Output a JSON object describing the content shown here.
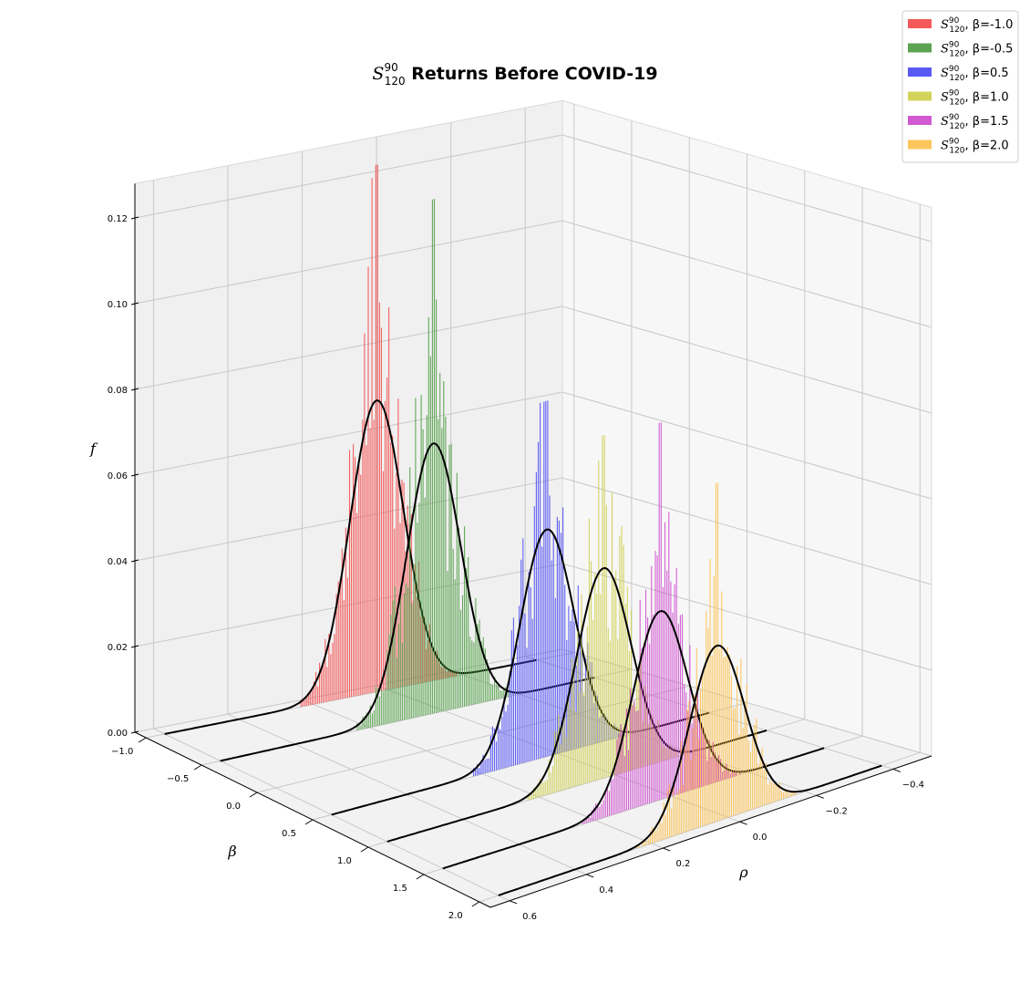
{
  "chart_data": {
    "type": "bar3d",
    "title": {
      "symbol": "S",
      "superscript": "90",
      "subscript": "120",
      "text": " Returns Before COVID-19"
    },
    "xlabel": "β",
    "ylabel": "ρ",
    "zlabel": "f",
    "xlim": [
      -1.1,
      2.1
    ],
    "ylim": [
      -0.5,
      0.65
    ],
    "zlim": [
      0,
      0.13
    ],
    "xticks": [
      -1.0,
      -0.5,
      0.0,
      0.5,
      1.0,
      1.5,
      2.0
    ],
    "xtick_labels": [
      "−1.0",
      "−0.5",
      "0.0",
      "0.5",
      "1.0",
      "1.5",
      "2.0"
    ],
    "yticks": [
      -0.4,
      -0.2,
      0.0,
      0.2,
      0.4,
      0.6
    ],
    "ytick_labels": [
      "−0.4",
      "−0.2",
      "0.0",
      "0.2",
      "0.4",
      "0.6"
    ],
    "zticks": [
      0.0,
      0.02,
      0.04,
      0.06,
      0.08,
      0.1,
      0.12
    ],
    "ztick_labels": [
      "0.00",
      "0.02",
      "0.04",
      "0.06",
      "0.08",
      "0.10",
      "0.12"
    ],
    "grid": true,
    "legend_position": "top-right",
    "series": [
      {
        "name": "β=-1.0",
        "beta": -1.0,
        "color": "#f44747",
        "fit_peak_rho": 0.03,
        "fit_peak_f": 0.068,
        "hist_max_f": 0.123,
        "fit_line_rho": [
          -0.4,
          0.6
        ]
      },
      {
        "name": "β=-0.5",
        "beta": -0.5,
        "color": "#4a9a3e",
        "fit_peak_rho": 0.03,
        "fit_peak_f": 0.063,
        "hist_max_f": 0.12,
        "fit_line_rho": [
          -0.4,
          0.6
        ]
      },
      {
        "name": "β=0.5",
        "beta": 0.5,
        "color": "#4747f4",
        "fit_peak_rho": 0.03,
        "fit_peak_f": 0.053,
        "hist_max_f": 0.083,
        "fit_line_rho": [
          -0.4,
          0.6
        ]
      },
      {
        "name": "β=1.0",
        "beta": 1.0,
        "color": "#cece4a",
        "fit_peak_rho": 0.03,
        "fit_peak_f": 0.049,
        "hist_max_f": 0.08,
        "fit_line_rho": [
          -0.4,
          0.6
        ]
      },
      {
        "name": "β=1.5",
        "beta": 1.5,
        "color": "#cc47cc",
        "fit_peak_rho": 0.03,
        "fit_peak_f": 0.044,
        "hist_max_f": 0.088,
        "fit_line_rho": [
          -0.4,
          0.6
        ]
      },
      {
        "name": "β=2.0",
        "beta": 2.0,
        "color": "#fbc04a",
        "fit_peak_rho": 0.03,
        "fit_peak_f": 0.041,
        "hist_max_f": 0.079,
        "fit_line_rho": [
          -0.4,
          0.6
        ]
      }
    ],
    "legend": {
      "symbol": "S",
      "superscript": "90",
      "subscript": "120"
    }
  }
}
